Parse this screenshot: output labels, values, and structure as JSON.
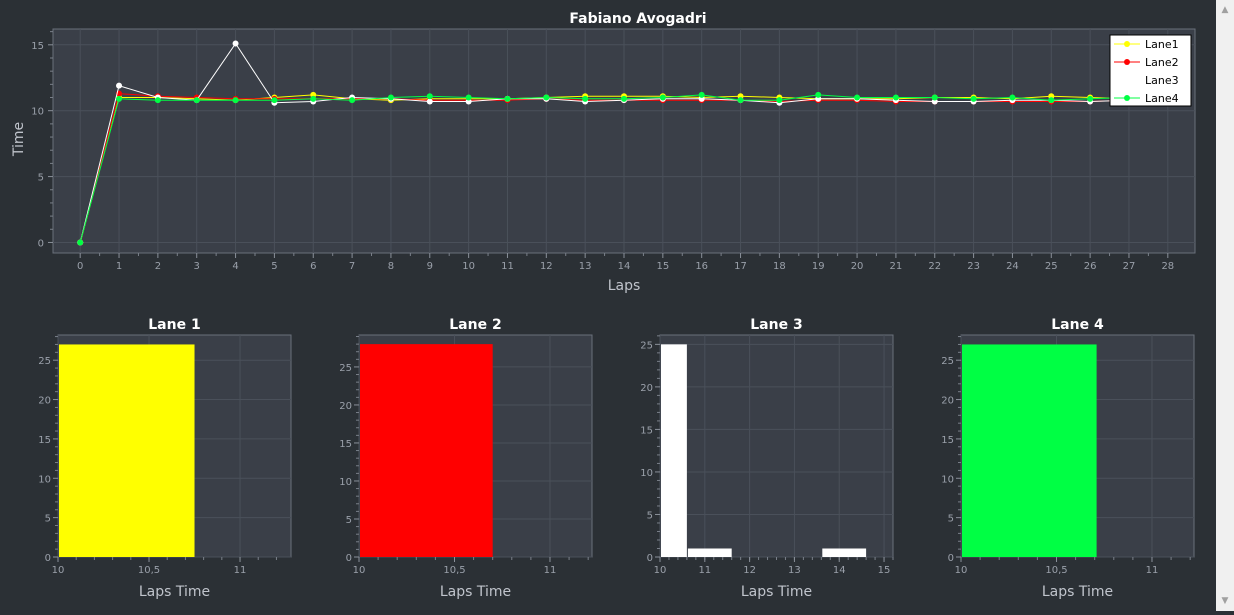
{
  "chart_data": [
    {
      "type": "line",
      "title": "Fabiano Avogadri",
      "xlabel": "Laps",
      "ylabel": "Time",
      "xlim": [
        -0.7,
        28.7
      ],
      "ylim": [
        -0.8,
        16.2
      ],
      "xticks": [
        0,
        1,
        2,
        3,
        4,
        5,
        6,
        7,
        8,
        9,
        10,
        11,
        12,
        13,
        14,
        15,
        16,
        17,
        18,
        19,
        20,
        21,
        22,
        23,
        24,
        25,
        26,
        27,
        28
      ],
      "yticks": [
        0,
        5,
        10,
        15
      ],
      "grid": true,
      "legend_position": "top-right",
      "series": [
        {
          "name": "Lane1",
          "color": "#ffff00",
          "x": [
            0,
            1,
            2,
            3,
            4,
            5,
            6,
            7,
            8,
            9,
            10,
            11,
            12,
            13,
            14,
            15,
            16,
            17,
            18,
            19,
            20,
            21,
            22,
            23,
            24,
            25,
            26,
            27,
            28
          ],
          "y": [
            0,
            11.0,
            11.0,
            10.9,
            10.8,
            11.0,
            11.2,
            10.9,
            10.8,
            10.9,
            10.9,
            10.9,
            11.0,
            11.1,
            11.1,
            11.1,
            11.0,
            11.1,
            11.0,
            10.9,
            10.9,
            10.9,
            11.0,
            11.0,
            10.9,
            11.1,
            11.0,
            10.9,
            11.0
          ]
        },
        {
          "name": "Lane2",
          "color": "#ff0000",
          "x": [
            0,
            1,
            2,
            3,
            4,
            5,
            6,
            7,
            8,
            9,
            10,
            11,
            12,
            13,
            14,
            15,
            16,
            17,
            18,
            19,
            20,
            21,
            22,
            23,
            24,
            25,
            26,
            27,
            28
          ],
          "y": [
            0,
            11.3,
            11.1,
            11.0,
            10.9,
            10.9,
            10.9,
            10.9,
            10.9,
            10.8,
            10.8,
            10.8,
            10.9,
            10.8,
            10.8,
            10.8,
            10.8,
            10.8,
            10.7,
            10.8,
            10.8,
            10.7,
            10.7,
            10.7,
            10.7,
            10.7,
            10.7,
            10.8,
            10.8
          ]
        },
        {
          "name": "Lane3",
          "color": "#ffffff",
          "x": [
            0,
            1,
            2,
            3,
            4,
            5,
            6,
            7,
            8,
            9,
            10,
            11,
            12,
            13,
            14,
            15,
            16,
            17,
            18,
            19,
            20,
            21,
            22,
            23,
            24,
            25,
            26,
            27,
            28
          ],
          "y": [
            0,
            11.9,
            11.0,
            10.8,
            15.1,
            10.6,
            10.7,
            11.0,
            10.9,
            10.7,
            10.7,
            10.9,
            10.9,
            10.7,
            10.8,
            10.9,
            10.9,
            10.8,
            10.6,
            10.9,
            10.9,
            10.8,
            10.7,
            10.7,
            10.8,
            10.8,
            10.7,
            10.8,
            10.8
          ]
        },
        {
          "name": "Lane4",
          "color": "#00ff44",
          "x": [
            0,
            1,
            2,
            3,
            4,
            5,
            6,
            7,
            8,
            9,
            10,
            11,
            12,
            13,
            14,
            15,
            16,
            17,
            18,
            19,
            20,
            21,
            22,
            23,
            24,
            25,
            26,
            27,
            28
          ],
          "y": [
            0,
            10.9,
            10.8,
            10.8,
            10.8,
            10.8,
            10.9,
            10.8,
            11.0,
            11.1,
            11.0,
            10.9,
            11.0,
            10.9,
            10.9,
            11.0,
            11.2,
            10.8,
            10.8,
            11.2,
            11.0,
            11.0,
            11.0,
            10.9,
            11.0,
            10.8,
            10.9,
            11.0,
            11.1
          ]
        }
      ]
    },
    {
      "type": "bar",
      "title": "Lane 1",
      "xlabel": "Laps Time",
      "color": "#ffff00",
      "xlim": [
        10,
        11.28
      ],
      "ylim": [
        0,
        28.2
      ],
      "xticks": [
        10,
        10.5,
        11
      ],
      "xtick_labels": [
        "10",
        "10,5",
        "11"
      ],
      "yticks": [
        0,
        5,
        10,
        15,
        20,
        25
      ],
      "bins": [
        {
          "x0": 10,
          "x1": 10.75,
          "count": 27
        }
      ]
    },
    {
      "type": "bar",
      "title": "Lane 2",
      "xlabel": "Laps Time",
      "color": "#ff0000",
      "xlim": [
        10,
        11.22
      ],
      "ylim": [
        0,
        29.2
      ],
      "xticks": [
        10,
        10.5,
        11
      ],
      "xtick_labels": [
        "10",
        "10,5",
        "11"
      ],
      "yticks": [
        0,
        5,
        10,
        15,
        20,
        25
      ],
      "bins": [
        {
          "x0": 10,
          "x1": 10.7,
          "count": 28
        }
      ]
    },
    {
      "type": "bar",
      "title": "Lane 3",
      "xlabel": "Laps Time",
      "color": "#ffffff",
      "xlim": [
        10,
        15.2
      ],
      "ylim": [
        0,
        26.1
      ],
      "xticks": [
        10,
        11,
        12,
        13,
        14,
        15
      ],
      "xtick_labels": [
        "10",
        "11",
        "12",
        "13",
        "14",
        "15"
      ],
      "yticks": [
        0,
        5,
        10,
        15,
        20,
        25
      ],
      "bins": [
        {
          "x0": 10,
          "x1": 10.6,
          "count": 25
        },
        {
          "x0": 10.6,
          "x1": 11.6,
          "count": 1
        },
        {
          "x0": 13.6,
          "x1": 14.6,
          "count": 1
        }
      ]
    },
    {
      "type": "bar",
      "title": "Lane 4",
      "xlabel": "Laps Time",
      "color": "#00ff44",
      "xlim": [
        10,
        11.22
      ],
      "ylim": [
        0,
        28.2
      ],
      "xticks": [
        10,
        10.5,
        11
      ],
      "xtick_labels": [
        "10",
        "10,5",
        "11"
      ],
      "yticks": [
        0,
        5,
        10,
        15,
        20,
        25
      ],
      "bins": [
        {
          "x0": 10,
          "x1": 10.71,
          "count": 27
        }
      ]
    }
  ]
}
